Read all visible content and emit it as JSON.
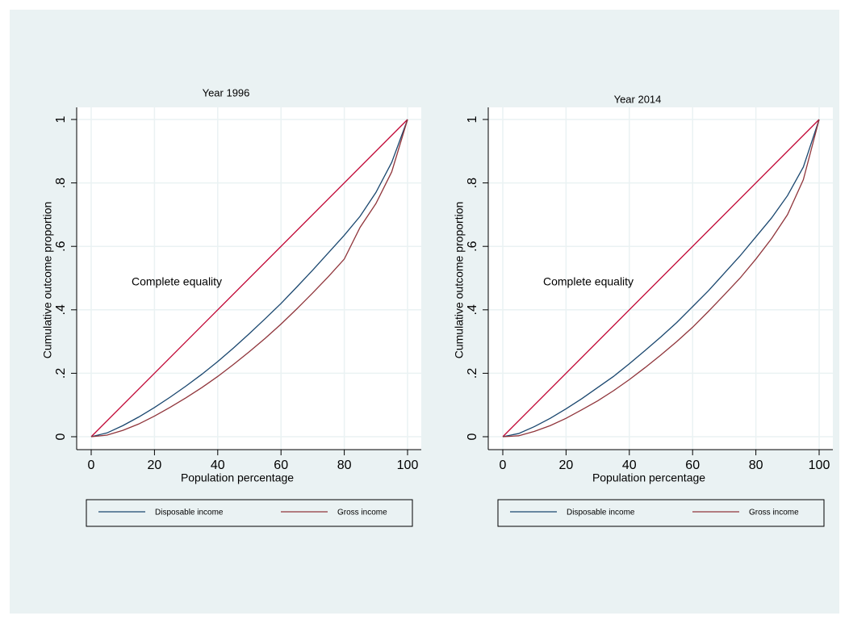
{
  "chart_data": [
    {
      "type": "line",
      "title": "Year 1996",
      "xlabel": "Population percentage",
      "ylabel": "Cumulative outcome proportion",
      "annotation": "Complete equality",
      "x": [
        0,
        5,
        10,
        15,
        20,
        25,
        30,
        35,
        40,
        45,
        50,
        55,
        60,
        65,
        70,
        75,
        80,
        85,
        90,
        95,
        100
      ],
      "series": [
        {
          "name": "Disposable  income",
          "color": "#1a476f",
          "values": [
            0,
            0.012,
            0.035,
            0.062,
            0.092,
            0.125,
            0.16,
            0.197,
            0.237,
            0.28,
            0.325,
            0.372,
            0.42,
            0.472,
            0.525,
            0.58,
            0.635,
            0.695,
            0.77,
            0.865,
            1
          ]
        },
        {
          "name": "Gross income",
          "color": "#90353b",
          "values": [
            0,
            0.005,
            0.02,
            0.04,
            0.065,
            0.093,
            0.123,
            0.155,
            0.19,
            0.228,
            0.268,
            0.31,
            0.355,
            0.403,
            0.453,
            0.505,
            0.56,
            0.66,
            0.735,
            0.835,
            1
          ]
        }
      ],
      "equality_line": {
        "x": [
          0,
          100
        ],
        "y": [
          0,
          1
        ],
        "color": "#c10534"
      },
      "xlim": [
        0,
        100
      ],
      "xticks": [
        0,
        20,
        40,
        60,
        80,
        100
      ],
      "ylim": [
        0,
        1
      ],
      "yticks": [
        0,
        {
          "value": 0.2,
          "label": ".2"
        },
        {
          "value": 0.4,
          "label": ".4"
        },
        {
          "value": 0.6,
          "label": ".6"
        },
        {
          "value": 0.8,
          "label": ".8"
        },
        1
      ],
      "grid": true
    },
    {
      "type": "line",
      "title": "Year 2014",
      "xlabel": "Population percentage",
      "ylabel": "Cumulative outcome proportion",
      "annotation": "Complete equality",
      "x": [
        0,
        5,
        10,
        15,
        20,
        25,
        30,
        35,
        40,
        45,
        50,
        55,
        60,
        65,
        70,
        75,
        80,
        85,
        90,
        95,
        100
      ],
      "series": [
        {
          "name": "Disposable income",
          "color": "#1a476f",
          "values": [
            0,
            0.01,
            0.032,
            0.058,
            0.088,
            0.12,
            0.155,
            0.19,
            0.23,
            0.272,
            0.315,
            0.36,
            0.41,
            0.46,
            0.515,
            0.57,
            0.63,
            0.69,
            0.76,
            0.85,
            1
          ]
        },
        {
          "name": "Gross income",
          "color": "#90353b",
          "values": [
            0,
            0.003,
            0.017,
            0.035,
            0.058,
            0.085,
            0.113,
            0.145,
            0.18,
            0.218,
            0.258,
            0.3,
            0.345,
            0.395,
            0.447,
            0.5,
            0.56,
            0.625,
            0.7,
            0.81,
            1
          ]
        }
      ],
      "equality_line": {
        "x": [
          0,
          100
        ],
        "y": [
          0,
          1
        ],
        "color": "#c10534"
      },
      "xlim": [
        0,
        100
      ],
      "xticks": [
        0,
        20,
        40,
        60,
        80,
        100
      ],
      "ylim": [
        0,
        1
      ],
      "yticks": [
        0,
        {
          "value": 0.2,
          "label": ".2"
        },
        {
          "value": 0.4,
          "label": ".4"
        },
        {
          "value": 0.6,
          "label": ".6"
        },
        {
          "value": 0.8,
          "label": ".8"
        },
        1
      ],
      "grid": true
    }
  ]
}
